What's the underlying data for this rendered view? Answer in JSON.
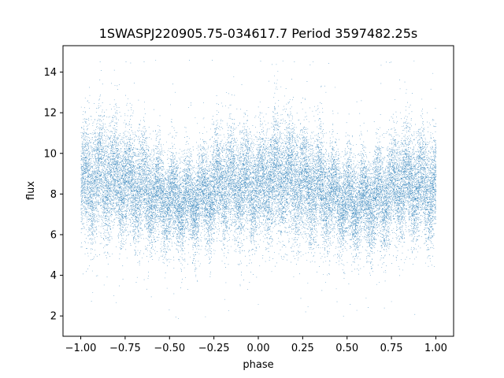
{
  "chart_data": {
    "type": "scatter",
    "title": "1SWASPJ220905.75-034617.7 Period 3597482.25s",
    "xlabel": "phase",
    "ylabel": "flux",
    "xlim": [
      -1.1,
      1.1
    ],
    "ylim": [
      1.0,
      15.3
    ],
    "xticks": [
      -1.0,
      -0.75,
      -0.5,
      -0.25,
      0.0,
      0.25,
      0.5,
      0.75,
      1.0
    ],
    "xtick_labels": [
      "−1.00",
      "−0.75",
      "−0.50",
      "−0.25",
      "0.00",
      "0.25",
      "0.50",
      "0.75",
      "1.00"
    ],
    "yticks": [
      2,
      4,
      6,
      8,
      10,
      12,
      14
    ],
    "ytick_labels": [
      "2",
      "4",
      "6",
      "8",
      "10",
      "12",
      "14"
    ],
    "grid": false,
    "legend": "none",
    "marker_color": "#1f77b4",
    "series": [
      {
        "phase_range": [
          -1.0,
          1.0
        ],
        "point_count": 30000,
        "description_profile_x": [
          -1.0,
          -0.9,
          -0.8,
          -0.7,
          -0.6,
          -0.5,
          -0.4,
          -0.3,
          -0.2,
          -0.1,
          0.0,
          0.1,
          0.2,
          0.3,
          0.4,
          0.5,
          0.6,
          0.7,
          0.8,
          0.9,
          1.0
        ],
        "median_flux": [
          8.3,
          8.9,
          8.7,
          8.4,
          8.0,
          7.6,
          7.6,
          7.9,
          8.6,
          8.4,
          8.3,
          8.9,
          8.7,
          8.4,
          8.0,
          7.6,
          7.6,
          7.9,
          8.6,
          8.4,
          8.3
        ],
        "flux_spread": [
          1.3,
          1.4,
          1.4,
          1.3,
          1.2,
          1.1,
          1.1,
          1.2,
          1.3,
          1.3,
          1.3,
          1.4,
          1.4,
          1.3,
          1.2,
          1.1,
          1.1,
          1.2,
          1.3,
          1.3,
          1.3
        ],
        "flux_min": 1.7,
        "flux_max": 14.6
      }
    ]
  }
}
